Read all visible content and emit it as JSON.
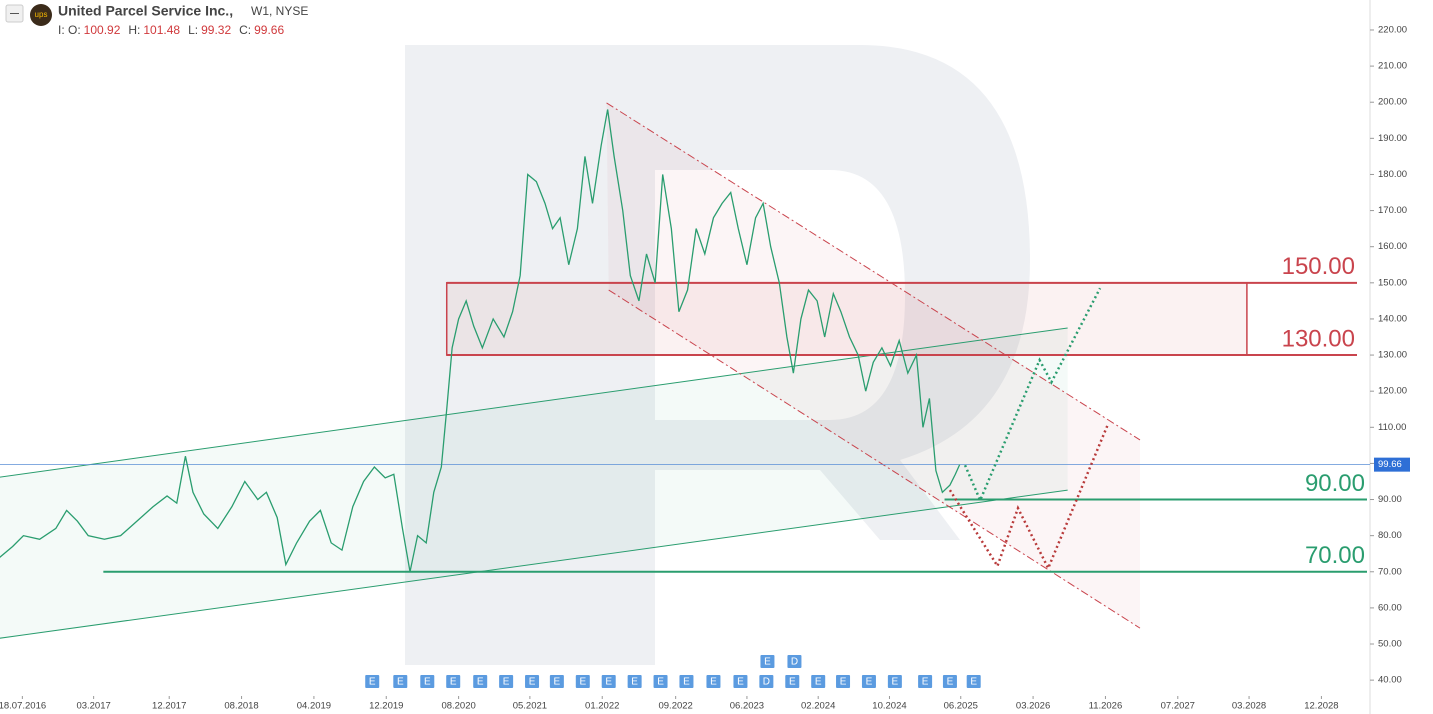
{
  "header": {
    "title": "United Parcel Service Inc.,",
    "interval": "W1, NYSE",
    "prefix": "I:",
    "ohlc": [
      {
        "label": "O:",
        "value": 100.92
      },
      {
        "label": "H:",
        "value": 101.48
      },
      {
        "label": "L:",
        "value": 99.32
      },
      {
        "label": "C:",
        "value": 99.66
      }
    ]
  },
  "chart_data": {
    "type": "line",
    "xlim": [
      2016.333,
      2029.02
    ],
    "ylim": [
      34.5,
      228.3
    ],
    "xticks": [
      {
        "value": 2016.54,
        "label": "18.07.2016"
      },
      {
        "value": 2017.2,
        "label": "03.2017"
      },
      {
        "value": 2017.9,
        "label": "12.2017"
      },
      {
        "value": 2018.57,
        "label": "08.2018"
      },
      {
        "value": 2019.24,
        "label": "04.2019"
      },
      {
        "value": 2019.91,
        "label": "12.2019"
      },
      {
        "value": 2020.58,
        "label": "08.2020"
      },
      {
        "value": 2021.24,
        "label": "05.2021"
      },
      {
        "value": 2021.91,
        "label": "01.2022"
      },
      {
        "value": 2022.59,
        "label": "09.2022"
      },
      {
        "value": 2023.25,
        "label": "06.2023"
      },
      {
        "value": 2023.91,
        "label": "02.2024"
      },
      {
        "value": 2024.57,
        "label": "10.2024"
      },
      {
        "value": 2025.23,
        "label": "06.2025"
      },
      {
        "value": 2025.9,
        "label": "03.2026"
      },
      {
        "value": 2026.57,
        "label": "11.2026"
      },
      {
        "value": 2027.24,
        "label": "07.2027"
      },
      {
        "value": 2027.9,
        "label": "03.2028"
      },
      {
        "value": 2028.57,
        "label": "12.2028"
      }
    ],
    "yticks": [
      {
        "value": 40,
        "label": "40.00"
      },
      {
        "value": 50,
        "label": "50.00"
      },
      {
        "value": 60,
        "label": "60.00"
      },
      {
        "value": 70,
        "label": "70.00"
      },
      {
        "value": 80,
        "label": "80.00"
      },
      {
        "value": 90,
        "label": "90.00"
      },
      {
        "value": 100,
        "label": "100.00"
      },
      {
        "value": 110,
        "label": "110.00"
      },
      {
        "value": 120,
        "label": "120.00"
      },
      {
        "value": 130,
        "label": "130.00"
      },
      {
        "value": 140,
        "label": "140.00"
      },
      {
        "value": 150,
        "label": "150.00"
      },
      {
        "value": 160,
        "label": "160.00"
      },
      {
        "value": 170,
        "label": "170.00"
      },
      {
        "value": 180,
        "label": "180.00"
      },
      {
        "value": 190,
        "label": "190.00"
      },
      {
        "value": 200,
        "label": "200.00"
      },
      {
        "value": 210,
        "label": "210.00"
      },
      {
        "value": 220,
        "label": "220.00"
      }
    ],
    "last_price": 99.66,
    "price": {
      "color": "#2a9d6f",
      "x": [
        2016.33,
        2016.45,
        2016.55,
        2016.7,
        2016.85,
        2016.95,
        2017.05,
        2017.15,
        2017.3,
        2017.45,
        2017.6,
        2017.75,
        2017.88,
        2017.97,
        2018.05,
        2018.12,
        2018.22,
        2018.35,
        2018.48,
        2018.6,
        2018.72,
        2018.8,
        2018.9,
        2018.98,
        2019.08,
        2019.2,
        2019.3,
        2019.4,
        2019.5,
        2019.6,
        2019.7,
        2019.8,
        2019.9,
        2019.98,
        2020.06,
        2020.13,
        2020.2,
        2020.28,
        2020.35,
        2020.42,
        2020.47,
        2020.52,
        2020.58,
        2020.65,
        2020.72,
        2020.8,
        2020.9,
        2021.0,
        2021.08,
        2021.15,
        2021.22,
        2021.3,
        2021.38,
        2021.45,
        2021.52,
        2021.6,
        2021.68,
        2021.75,
        2021.82,
        2021.9,
        2021.96,
        2022.02,
        2022.1,
        2022.17,
        2022.25,
        2022.32,
        2022.4,
        2022.47,
        2022.55,
        2022.62,
        2022.7,
        2022.78,
        2022.86,
        2022.94,
        2023.02,
        2023.1,
        2023.17,
        2023.25,
        2023.33,
        2023.4,
        2023.47,
        2023.55,
        2023.62,
        2023.68,
        2023.75,
        2023.82,
        2023.9,
        2023.97,
        2024.05,
        2024.12,
        2024.2,
        2024.28,
        2024.35,
        2024.42,
        2024.5,
        2024.58,
        2024.66,
        2024.74,
        2024.82,
        2024.88,
        2024.94,
        2025.0,
        2025.06,
        2025.13,
        2025.18,
        2025.22
      ],
      "values": [
        74,
        77,
        80,
        79,
        82,
        87,
        84,
        80,
        79,
        80,
        84,
        88,
        91,
        89,
        102,
        92,
        86,
        82,
        88,
        95,
        90,
        92,
        85,
        72,
        78,
        84,
        87,
        78,
        76,
        88,
        95,
        99,
        96,
        97,
        82,
        70,
        80,
        78,
        92,
        99,
        115,
        132,
        140,
        145,
        138,
        132,
        140,
        135,
        142,
        152,
        180,
        178,
        172,
        165,
        168,
        155,
        165,
        185,
        172,
        188,
        198,
        185,
        170,
        152,
        145,
        158,
        150,
        180,
        165,
        142,
        148,
        165,
        158,
        168,
        172,
        175,
        165,
        155,
        168,
        172,
        160,
        150,
        135,
        125,
        140,
        148,
        145,
        135,
        147,
        142,
        135,
        130,
        120,
        128,
        132,
        127,
        134,
        125,
        130,
        110,
        118,
        98,
        92,
        94,
        97,
        99.66
      ]
    },
    "levels": [
      {
        "value": 150,
        "label": "150.00",
        "color": "#c9444d",
        "start": 2020.47
      },
      {
        "value": 130,
        "label": "130.00",
        "color": "#c9444d",
        "start": 2020.47
      },
      {
        "value": 90,
        "label": "90.00",
        "color": "#2a9d6f",
        "start": 2025.08
      },
      {
        "value": 70,
        "label": "70.00",
        "color": "#2a9d6f",
        "start": 2017.29
      }
    ],
    "zone": {
      "x": [
        2020.47,
        2027.88
      ],
      "values": [
        130,
        150
      ],
      "color": "#c9444d"
    },
    "channels": [
      {
        "color": "#2a9d6f",
        "x": [
          2016.33,
          2026.22
        ],
        "values": [
          96.2,
          137.5
        ]
      },
      {
        "color": "#2a9d6f",
        "x": [
          2016.33,
          2026.22
        ],
        "values": [
          51.6,
          92.6
        ]
      },
      {
        "color": "#c9444d",
        "x": [
          2021.95,
          2026.89
        ],
        "values": [
          199.8,
          106.5
        ]
      },
      {
        "color": "#c9444d",
        "x": [
          2021.97,
          2026.89
        ],
        "values": [
          148,
          54.4
        ]
      }
    ],
    "forecasts": [
      {
        "color": "#2a9d6f",
        "x": [
          2025.27,
          2025.41,
          2025.96,
          2026.07,
          2026.52
        ],
        "values": [
          99.5,
          89.8,
          128.6,
          122.5,
          148.5
        ]
      },
      {
        "color": "#b83a3a",
        "x": [
          2025.13,
          2025.57,
          2025.76,
          2026.04,
          2026.59
        ],
        "values": [
          92.6,
          71.6,
          87.6,
          71,
          110.6
        ]
      }
    ],
    "events": [
      {
        "x": 2019.78,
        "label": "E"
      },
      {
        "x": 2020.04,
        "label": "E"
      },
      {
        "x": 2020.29,
        "label": "E"
      },
      {
        "x": 2020.53,
        "label": "E"
      },
      {
        "x": 2020.78,
        "label": "E"
      },
      {
        "x": 2021.02,
        "label": "E"
      },
      {
        "x": 2021.26,
        "label": "E"
      },
      {
        "x": 2021.49,
        "label": "E"
      },
      {
        "x": 2021.73,
        "label": "E"
      },
      {
        "x": 2021.97,
        "label": "E"
      },
      {
        "x": 2022.21,
        "label": "E"
      },
      {
        "x": 2022.45,
        "label": "E"
      },
      {
        "x": 2022.69,
        "label": "E"
      },
      {
        "x": 2022.94,
        "label": "E"
      },
      {
        "x": 2023.19,
        "label": "E"
      },
      {
        "x": 2023.43,
        "label": "D"
      },
      {
        "x": 2023.67,
        "label": "E"
      },
      {
        "x": 2023.91,
        "label": "E"
      },
      {
        "x": 2024.14,
        "label": "E"
      },
      {
        "x": 2024.38,
        "label": "E"
      },
      {
        "x": 2024.62,
        "label": "E"
      },
      {
        "x": 2024.9,
        "label": "E"
      },
      {
        "x": 2025.13,
        "label": "E"
      },
      {
        "x": 2025.35,
        "label": "E"
      }
    ],
    "events_upper": [
      {
        "x": 2023.44,
        "label": "E"
      },
      {
        "x": 2023.69,
        "label": "D"
      }
    ]
  }
}
